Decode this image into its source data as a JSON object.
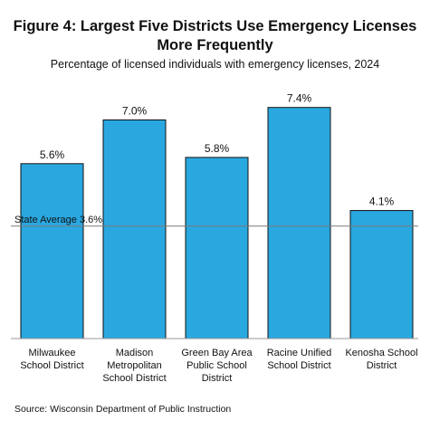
{
  "chart_data": {
    "type": "bar",
    "title_lines": [
      "Figure 4: Largest Five Districts Use Emergency Licenses",
      "More Frequently"
    ],
    "subtitle": "Percentage of licensed individuals with emergency licenses, 2024",
    "categories": [
      [
        "Milwaukee",
        "School District"
      ],
      [
        "Madison",
        "Metropolitan",
        "School District"
      ],
      [
        "Green Bay Area",
        "Public School",
        "District"
      ],
      [
        "Racine Unified",
        "School District"
      ],
      [
        "Kenosha School",
        "District"
      ]
    ],
    "values": [
      5.6,
      7.0,
      5.8,
      7.4,
      4.1
    ],
    "value_labels": [
      "5.6%",
      "7.0%",
      "5.8%",
      "7.4%",
      "4.1%"
    ],
    "ylim": [
      0,
      8
    ],
    "reference_line": {
      "value": 3.6,
      "label": "State Average 3.6%"
    },
    "bar_color": "#29a8e0",
    "bar_edge_color": "#111111",
    "grid": false,
    "source": "Source: Wisconsin Department of Public Instruction"
  }
}
